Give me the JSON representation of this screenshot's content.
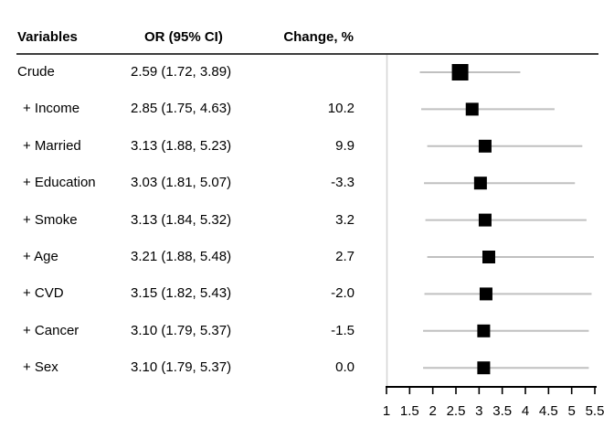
{
  "page": {
    "background": "#ffffff"
  },
  "header": {
    "variables": "Variables",
    "or_ci": "OR (95% CI)",
    "change": "Change, %"
  },
  "rows": [
    {
      "label": "Crude",
      "or_ci": "2.59 (1.72, 3.89)",
      "change": ""
    },
    {
      "label": "+ Income",
      "or_ci": "2.85 (1.75, 4.63)",
      "change": "10.2"
    },
    {
      "label": "+ Married",
      "or_ci": "3.13 (1.88, 5.23)",
      "change": "9.9"
    },
    {
      "label": "+ Education",
      "or_ci": "3.03 (1.81, 5.07)",
      "change": "-3.3"
    },
    {
      "label": "+ Smoke",
      "or_ci": "3.13 (1.84, 5.32)",
      "change": "3.2"
    },
    {
      "label": "+ Age",
      "or_ci": "3.21 (1.88, 5.48)",
      "change": "2.7"
    },
    {
      "label": "+ CVD",
      "or_ci": "3.15 (1.82, 5.43)",
      "change": "-2.0"
    },
    {
      "label": "+ Cancer",
      "or_ci": "3.10 (1.79, 5.37)",
      "change": "-1.5"
    },
    {
      "label": "+ Sex",
      "or_ci": "3.10 (1.79, 5.37)",
      "change": "0.0"
    }
  ],
  "chart_data": {
    "type": "scatter",
    "subtype": "forest-plot",
    "title": "",
    "xlabel": "",
    "xlim": [
      1,
      5.5
    ],
    "xticks": [
      1,
      1.5,
      2,
      2.5,
      3,
      3.5,
      4,
      4.5,
      5,
      5.5
    ],
    "xtick_labels": [
      "1",
      "1.5",
      "2",
      "2.5",
      "3",
      "3.5",
      "4",
      "4.5",
      "5",
      "5.5"
    ],
    "grid": false,
    "legend": null,
    "points": [
      {
        "label": "Crude",
        "or": 2.59,
        "ci_low": 1.72,
        "ci_high": 3.89,
        "change_pct": null
      },
      {
        "label": "+ Income",
        "or": 2.85,
        "ci_low": 1.75,
        "ci_high": 4.63,
        "change_pct": 10.2
      },
      {
        "label": "+ Married",
        "or": 3.13,
        "ci_low": 1.88,
        "ci_high": 5.23,
        "change_pct": 9.9
      },
      {
        "label": "+ Education",
        "or": 3.03,
        "ci_low": 1.81,
        "ci_high": 5.07,
        "change_pct": -3.3
      },
      {
        "label": "+ Smoke",
        "or": 3.13,
        "ci_low": 1.84,
        "ci_high": 5.32,
        "change_pct": 3.2
      },
      {
        "label": "+ Age",
        "or": 3.21,
        "ci_low": 1.88,
        "ci_high": 5.48,
        "change_pct": 2.7
      },
      {
        "label": "+ CVD",
        "or": 3.15,
        "ci_low": 1.82,
        "ci_high": 5.43,
        "change_pct": -2.0
      },
      {
        "label": "+ Cancer",
        "or": 3.1,
        "ci_low": 1.79,
        "ci_high": 5.37,
        "change_pct": -1.5
      },
      {
        "label": "+ Sex",
        "or": 3.1,
        "ci_low": 1.79,
        "ci_high": 5.37,
        "change_pct": 0.0
      }
    ],
    "colors": {
      "marker": "#000000",
      "ci_line": "#c0c0c0",
      "axis": "#000000",
      "frame_line": "#d4d4d4",
      "header_rule": "#3d3d3d",
      "text": "#000000"
    }
  }
}
